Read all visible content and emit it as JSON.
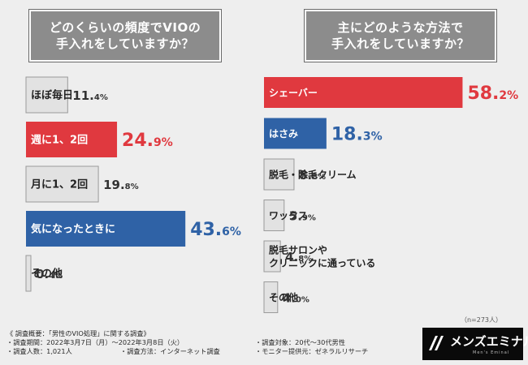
{
  "chart_data": [
    {
      "type": "bar",
      "orientation": "horizontal",
      "title": "どのくらいの頻度でVIOの手入れをしていますか？",
      "title_lines": [
        "どのくらいの頻度でVIOの",
        "手入れをしていますか？"
      ],
      "unit": "%",
      "categories": [
        "ほぼ毎日",
        "週に1、2回",
        "月に1、2回",
        "気になったときに",
        "その他"
      ],
      "values": [
        11.4,
        24.9,
        19.8,
        43.6,
        0.4
      ],
      "value_labels": [
        {
          "int": "11.",
          "dec": "4%"
        },
        {
          "int": "24.",
          "dec": "9%"
        },
        {
          "int": "19.",
          "dec": "8%"
        },
        {
          "int": "43.",
          "dec": "6%"
        },
        {
          "int": "0.",
          "dec": "4%"
        }
      ],
      "highlight": [
        "gray",
        "red",
        "gray",
        "blue",
        "gray"
      ]
    },
    {
      "type": "bar",
      "orientation": "horizontal",
      "title": "主にどのような方法で手入れをしていますか？",
      "title_lines": [
        "主にどのような方法で",
        "手入れをしていますか？"
      ],
      "unit": "%",
      "categories": [
        "シェーバー",
        "はさみ",
        "脱毛・除毛クリーム",
        "ワックス",
        "脱毛サロンやクリニックに通っている",
        "その他"
      ],
      "category_lines": [
        [
          "シェーバー"
        ],
        [
          "はさみ"
        ],
        [
          "脱毛・除毛クリーム"
        ],
        [
          "ワックス"
        ],
        [
          "脱毛サロンや",
          "クリニックに通っている"
        ],
        [
          "その他"
        ]
      ],
      "values": [
        58.2,
        18.3,
        8.8,
        5.9,
        4.8,
        4.0
      ],
      "value_labels": [
        {
          "int": "58.",
          "dec": "2%"
        },
        {
          "int": "18.",
          "dec": "3%"
        },
        {
          "int": "8.",
          "dec": "8%"
        },
        {
          "int": "5.",
          "dec": "9%"
        },
        {
          "int": "4.",
          "dec": "8%"
        },
        {
          "int": "4.",
          "dec": "0%"
        }
      ],
      "highlight": [
        "red",
        "blue",
        "gray",
        "gray",
        "gray",
        "gray"
      ],
      "note": "（n=273人）"
    }
  ],
  "colors": {
    "red": "#e0393f",
    "blue": "#2f62a6",
    "gray": "#e2e2e2",
    "gray_border": "#9a9a9a",
    "text": "#222222",
    "value_text": "#333333"
  },
  "footer": {
    "survey_title": "《 調査概要：「男性のVIO処理」に関する調査》",
    "period": "・調査期間：2022年3月7日（月）〜2022年3月8日（火）",
    "target": "・調査対象：20代〜30代男性",
    "respondents": "・調査人数：1,021人",
    "method": "・調査方法：インターネット調査",
    "provider": "・モニター提供元：ゼネラルリサーチ"
  },
  "logo": {
    "text": "メンズエミナル",
    "sub": "Men's Eminal"
  }
}
